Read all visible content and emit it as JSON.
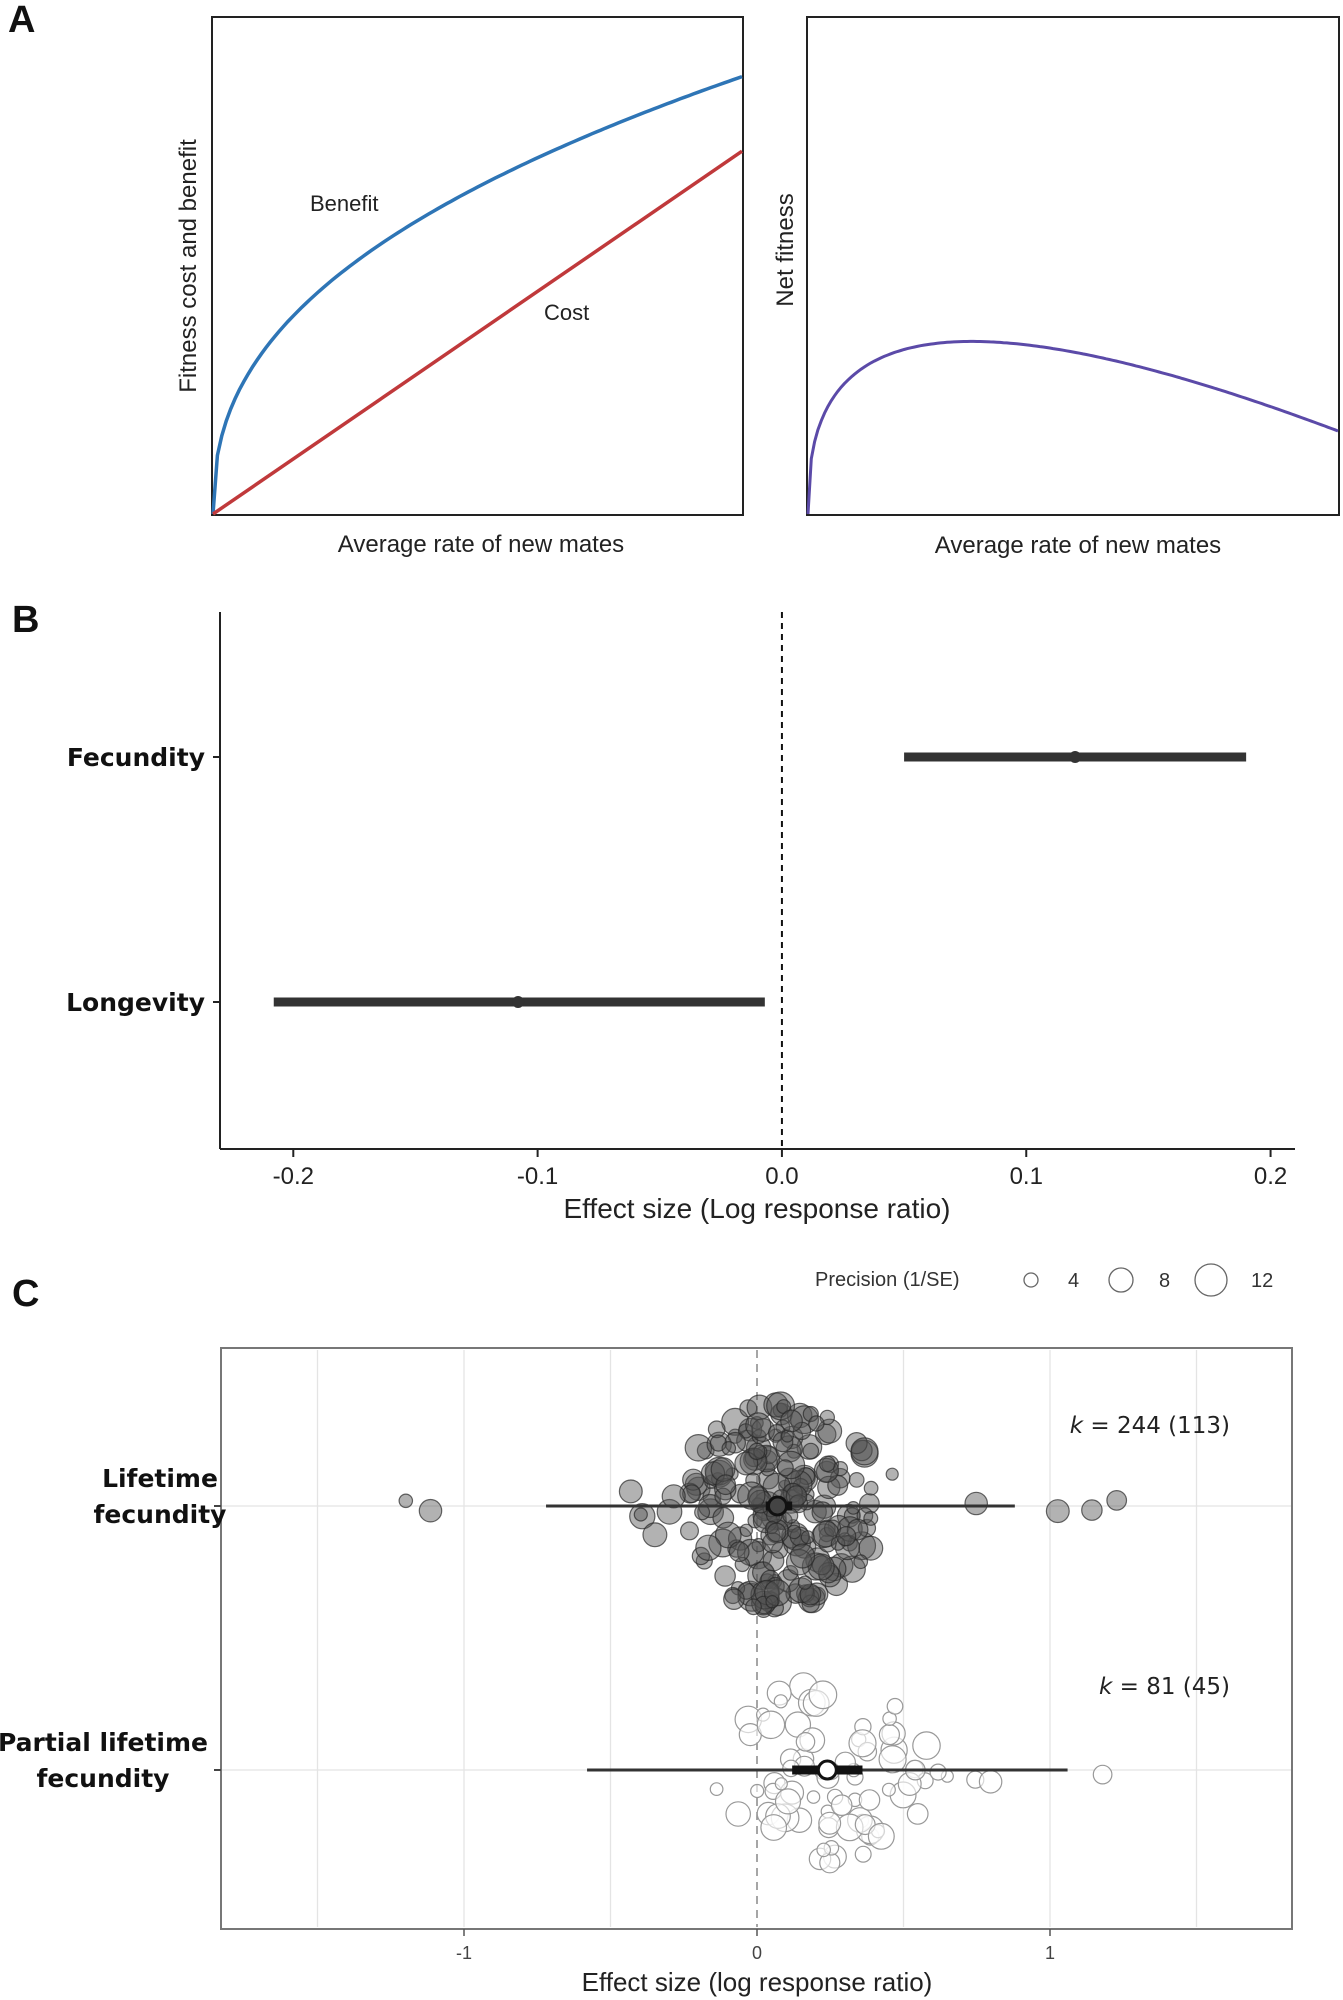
{
  "panel_labels": {
    "a": "A",
    "b": "B",
    "c": "C"
  },
  "chart_data": [
    {
      "type": "line",
      "panel": "A",
      "xlabel": "Average rate of new mates",
      "ylabel": "Fitness cost and benefit",
      "series": [
        {
          "name": "Benefit",
          "color": "#2e75b6",
          "shape": "saturating",
          "x": [
            0,
            0.1,
            0.25,
            0.5,
            0.75,
            1.0
          ],
          "y": [
            0,
            0.35,
            0.55,
            0.73,
            0.83,
            0.88
          ]
        },
        {
          "name": "Cost",
          "color": "#c0393b",
          "shape": "linear",
          "x": [
            0,
            1.0
          ],
          "y": [
            0,
            0.73
          ]
        }
      ]
    },
    {
      "type": "line",
      "panel": "A",
      "xlabel": "Average rate of new mates",
      "ylabel": "Net fitness",
      "series": [
        {
          "color": "#5b4aa8",
          "x": [
            0,
            0.05,
            0.15,
            0.3,
            0.5,
            0.75,
            1.0
          ],
          "y": [
            0,
            0.2,
            0.34,
            0.38,
            0.35,
            0.25,
            0.15
          ]
        }
      ]
    },
    {
      "type": "scatter",
      "panel": "B",
      "xlabel": "Effect size (Log response ratio)",
      "xlim": [
        -0.23,
        0.21
      ],
      "xticks": [
        "-0.2",
        "-0.1",
        "0.0",
        "0.1",
        "0.2"
      ],
      "xtick_values": [
        -0.2,
        -0.1,
        0.0,
        0.1,
        0.2
      ],
      "categories": [
        "Fecundity",
        "Longevity"
      ],
      "estimates": [
        {
          "category": "Fecundity",
          "estimate": 0.12,
          "ci": [
            0.05,
            0.19
          ]
        },
        {
          "category": "Longevity",
          "estimate": -0.108,
          "ci": [
            -0.208,
            -0.007
          ]
        }
      ],
      "reference_line": 0
    },
    {
      "type": "scatter",
      "panel": "C",
      "xlabel": "Effect size (log response ratio)",
      "xlim": [
        -1.8,
        1.8
      ],
      "xticks": [
        "-1",
        "0",
        "1"
      ],
      "xtick_values": [
        -1,
        0,
        1
      ],
      "legend": {
        "title": "Precision (1/SE)",
        "sizes": [
          "4",
          "8",
          "12"
        ],
        "placement": "top-right"
      },
      "groups": [
        {
          "label": "Lifetime\nfecundity",
          "label_lines": [
            "Lifetime",
            "fecundity"
          ],
          "k_prefix": "k",
          "k_text": " = 244 (113)",
          "k": 244,
          "studies": 113,
          "estimate": 0.07,
          "ci": [
            0.03,
            0.12
          ],
          "pi": [
            -0.72,
            0.88
          ],
          "fill": "#555555"
        },
        {
          "label": "Partial lifetime\nfecundity",
          "label_lines": [
            "Partial lifetime",
            "fecundity"
          ],
          "k_prefix": "k",
          "k_text": " = 81 (45)",
          "k": 81,
          "studies": 45,
          "estimate": 0.24,
          "ci": [
            0.12,
            0.36
          ],
          "pi": [
            -0.58,
            1.06
          ],
          "fill": "#ffffff"
        }
      ]
    }
  ]
}
